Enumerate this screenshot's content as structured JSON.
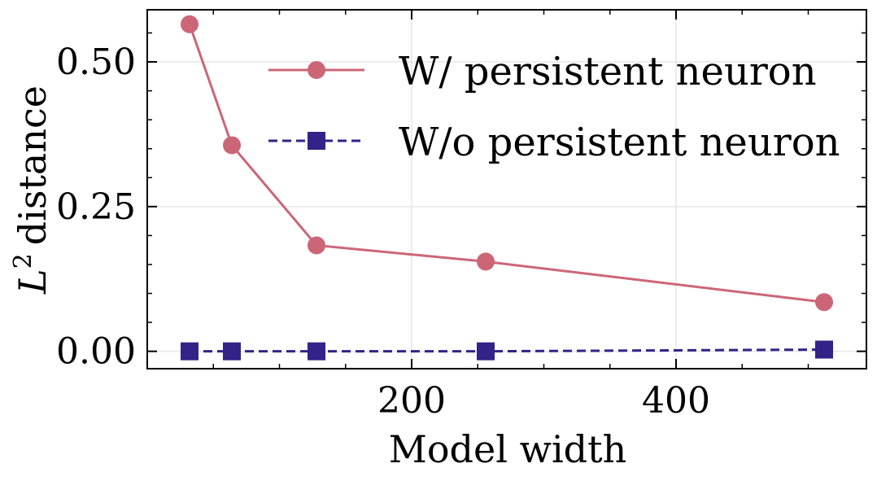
{
  "chart_data": {
    "type": "line",
    "title": "",
    "xlabel": "Model width",
    "ylabel": "distance",
    "ylabel_math": {
      "base": "L",
      "superscript": "2"
    },
    "xlim": [
      0,
      544
    ],
    "ylim": [
      -0.03,
      0.59
    ],
    "x_ticks": [
      200,
      400
    ],
    "y_ticks": [
      0.0,
      0.25,
      0.5
    ],
    "x_tick_labels": [
      "200",
      "400"
    ],
    "y_tick_labels": [
      "0.00",
      "0.25",
      "0.50"
    ],
    "grid": true,
    "legend_position": "top-right",
    "series": [
      {
        "name": "W/ persistent neuron",
        "color": "#cc6677",
        "line_style": "solid",
        "marker": "circle",
        "x": [
          32,
          64,
          128,
          256,
          512
        ],
        "y": [
          0.565,
          0.356,
          0.183,
          0.155,
          0.085
        ]
      },
      {
        "name": "W/o persistent neuron",
        "color": "#332288",
        "line_style": "dashed",
        "marker": "square",
        "x": [
          32,
          64,
          128,
          256,
          512
        ],
        "y": [
          0.0,
          0.0,
          0.0,
          0.0,
          0.003
        ]
      }
    ]
  }
}
